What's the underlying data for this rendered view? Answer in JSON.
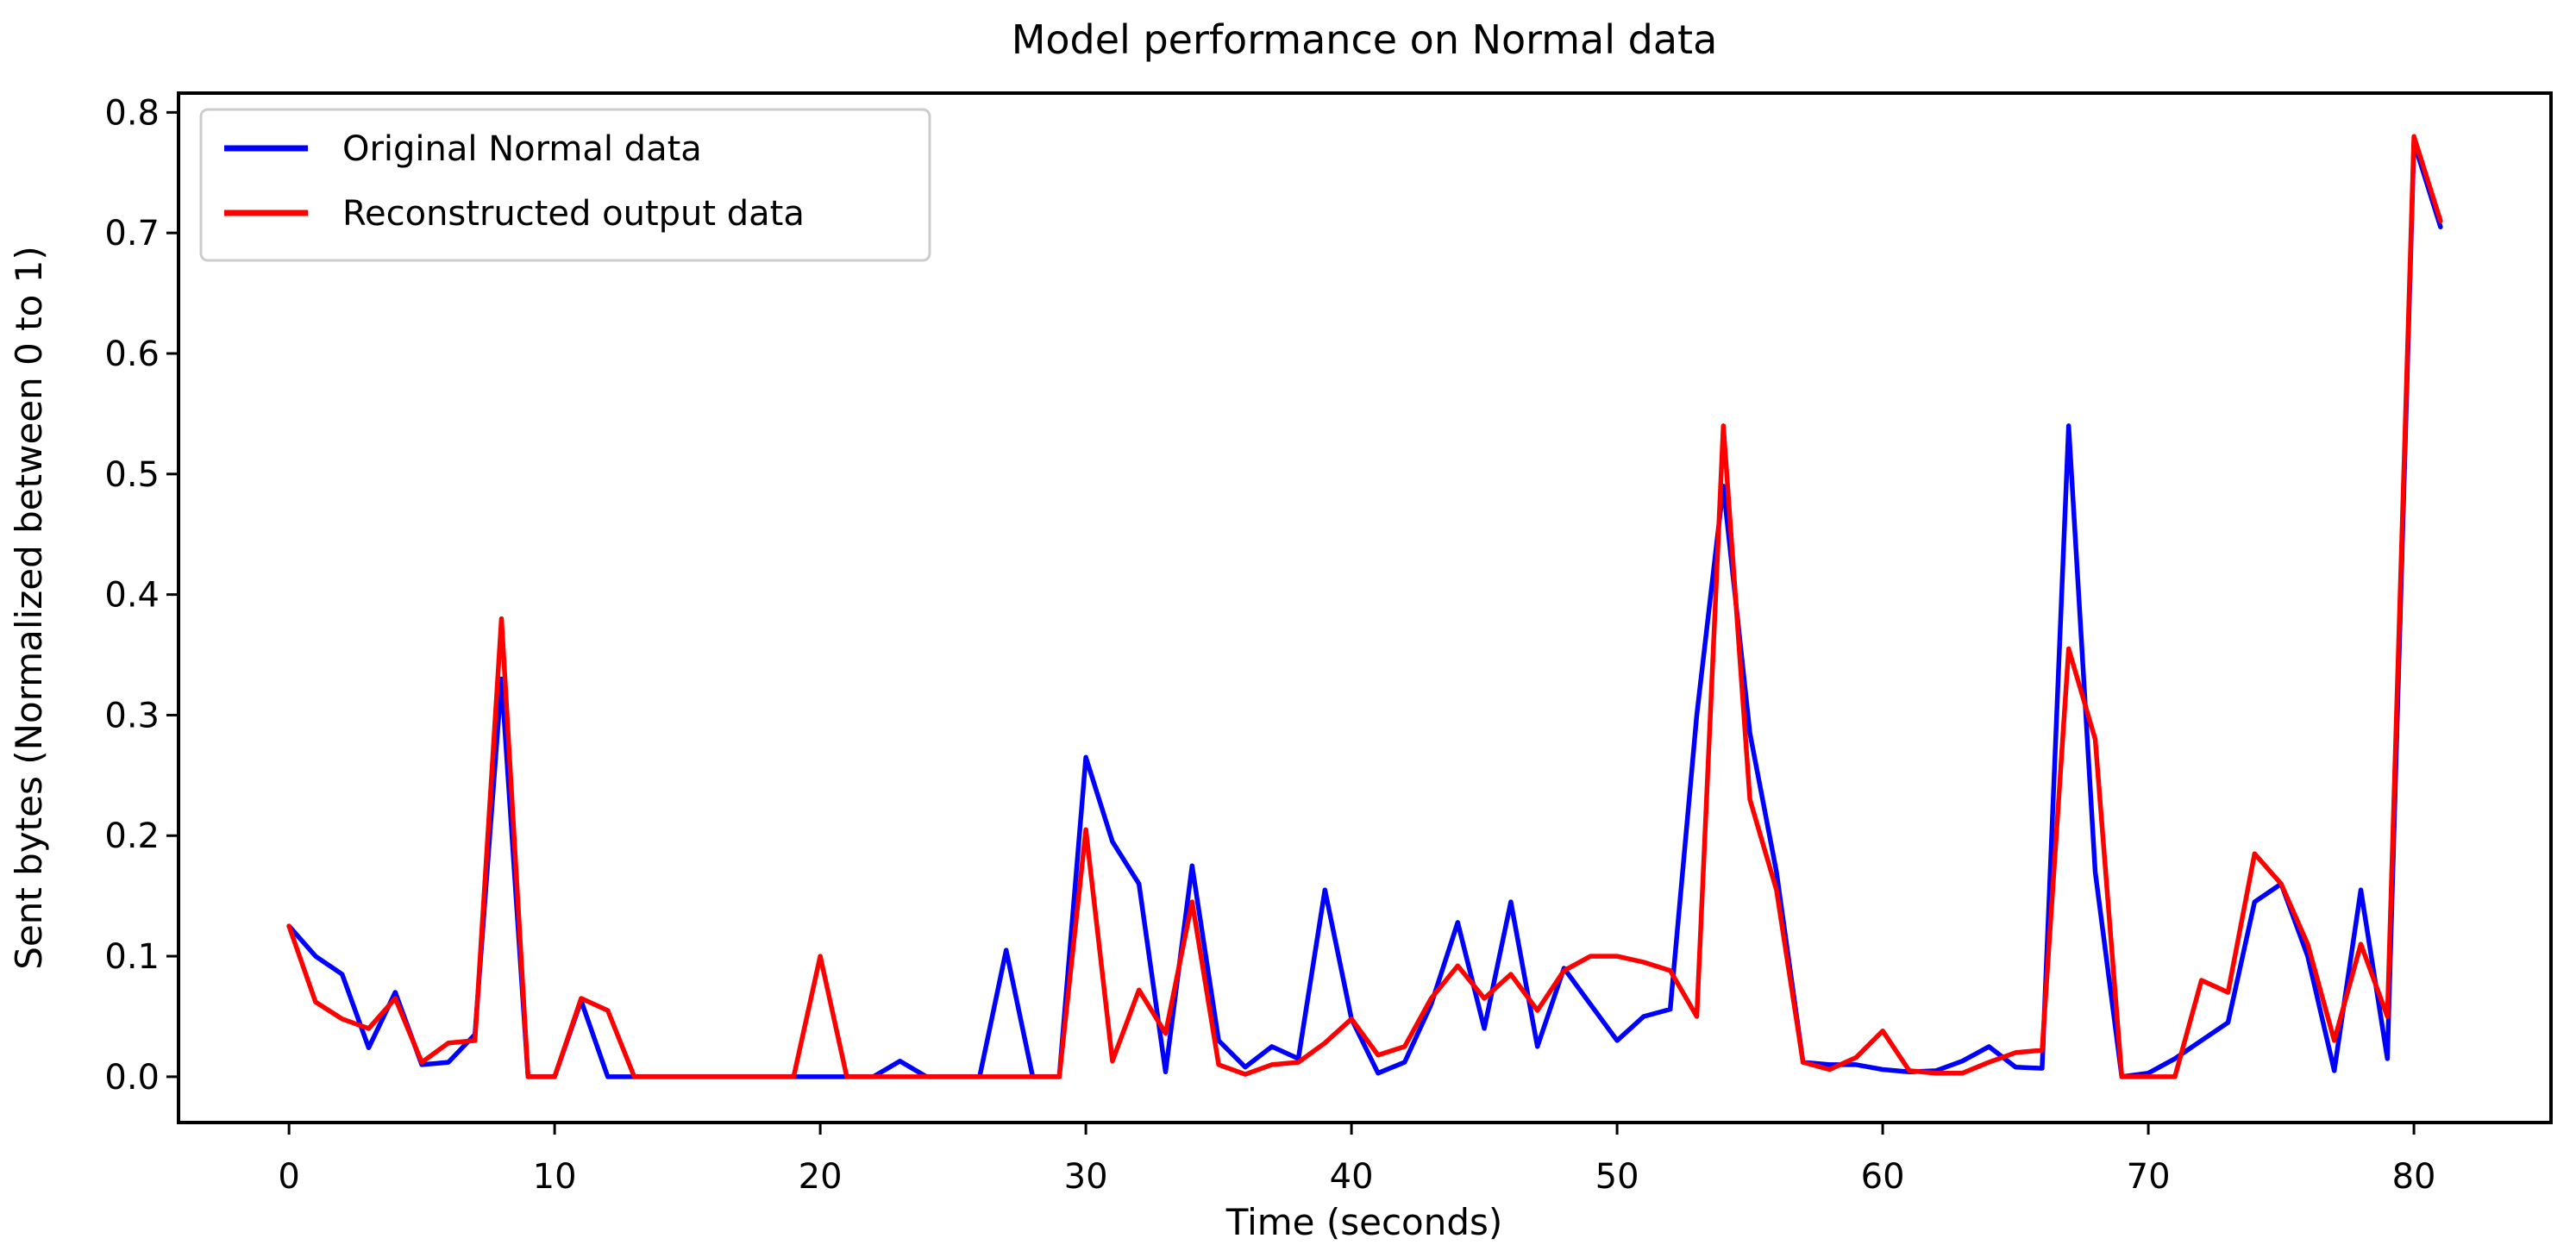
{
  "figure": {
    "title": "Model performance on Normal data",
    "xlabel": "Time (seconds)",
    "ylabel": "Sent bytes (Normalized between 0 to 1)"
  },
  "legend": {
    "entries": [
      {
        "label": "Original Normal data",
        "color": "#0000ff"
      },
      {
        "label": "Reconstructed output data",
        "color": "#ff0000"
      }
    ]
  },
  "chart_data": {
    "type": "line",
    "title": "Model performance on Normal data",
    "xlabel": "Time (seconds)",
    "ylabel": "Sent bytes (Normalized between 0 to 1)",
    "xlim": [
      -4.16,
      85.16
    ],
    "ylim": [
      -0.038,
      0.816
    ],
    "xticks": {
      "values": [
        0,
        10,
        20,
        30,
        40,
        50,
        60,
        70,
        80
      ],
      "labels": [
        "0",
        "10",
        "20",
        "30",
        "40",
        "50",
        "60",
        "70",
        "80"
      ]
    },
    "yticks": {
      "values": [
        0.0,
        0.1,
        0.2,
        0.3,
        0.4,
        0.5,
        0.6,
        0.7,
        0.8
      ],
      "labels": [
        "0.0",
        "0.1",
        "0.2",
        "0.3",
        "0.4",
        "0.5",
        "0.6",
        "0.7",
        "0.8"
      ]
    },
    "grid": false,
    "legend_position": "upper left",
    "x": [
      0,
      1,
      2,
      3,
      4,
      5,
      6,
      7,
      8,
      9,
      10,
      11,
      12,
      13,
      14,
      15,
      16,
      17,
      18,
      19,
      20,
      21,
      22,
      23,
      24,
      25,
      26,
      27,
      28,
      29,
      30,
      31,
      32,
      33,
      34,
      35,
      36,
      37,
      38,
      39,
      40,
      41,
      42,
      43,
      44,
      45,
      46,
      47,
      48,
      49,
      50,
      51,
      52,
      53,
      54,
      55,
      56,
      57,
      58,
      59,
      60,
      61,
      62,
      63,
      64,
      65,
      66,
      67,
      68,
      69,
      70,
      71,
      72,
      73,
      74,
      75,
      76,
      77,
      78,
      79,
      80,
      81
    ],
    "series": [
      {
        "name": "Original Normal data",
        "color": "#0000ff",
        "values": [
          0.125,
          0.1,
          0.085,
          0.024,
          0.07,
          0.01,
          0.012,
          0.035,
          0.33,
          0,
          0,
          0.063,
          0,
          0,
          0,
          0,
          0,
          0,
          0,
          0,
          0,
          0,
          0,
          0.013,
          0,
          0,
          0,
          0.105,
          0,
          0,
          0.265,
          0.195,
          0.16,
          0.004,
          0.175,
          0.03,
          0.008,
          0.025,
          0.015,
          0.155,
          0.048,
          0.003,
          0.012,
          0.06,
          0.128,
          0.04,
          0.145,
          0.025,
          0.09,
          0.06,
          0.03,
          0.05,
          0.056,
          0.3,
          0.49,
          0.285,
          0.17,
          0.012,
          0.01,
          0.01,
          0.006,
          0.004,
          0.005,
          0.013,
          0.025,
          0.008,
          0.007,
          0.54,
          0.17,
          0,
          0.003,
          0.015,
          0.03,
          0.045,
          0.145,
          0.16,
          0.1,
          0.005,
          0.155,
          0.015,
          0.775,
          0.705
        ]
      },
      {
        "name": "Reconstructed output data",
        "color": "#ff0000",
        "values": [
          0.125,
          0.062,
          0.048,
          0.04,
          0.065,
          0.012,
          0.028,
          0.03,
          0.38,
          0,
          0,
          0.065,
          0.055,
          0,
          0,
          0,
          0,
          0,
          0,
          0,
          0.1,
          0,
          0,
          0,
          0,
          0,
          0,
          0,
          0,
          0,
          0.205,
          0.013,
          0.072,
          0.036,
          0.145,
          0.01,
          0.002,
          0.01,
          0.012,
          0.028,
          0.048,
          0.018,
          0.025,
          0.065,
          0.092,
          0.065,
          0.085,
          0.055,
          0.088,
          0.1,
          0.1,
          0.095,
          0.088,
          0.05,
          0.54,
          0.23,
          0.155,
          0.012,
          0.006,
          0.016,
          0.038,
          0.005,
          0.003,
          0.003,
          0.012,
          0.02,
          0.022,
          0.355,
          0.28,
          0,
          0,
          0,
          0.08,
          0.07,
          0.185,
          0.16,
          0.11,
          0.03,
          0.11,
          0.05,
          0.78,
          0.71
        ]
      }
    ]
  }
}
